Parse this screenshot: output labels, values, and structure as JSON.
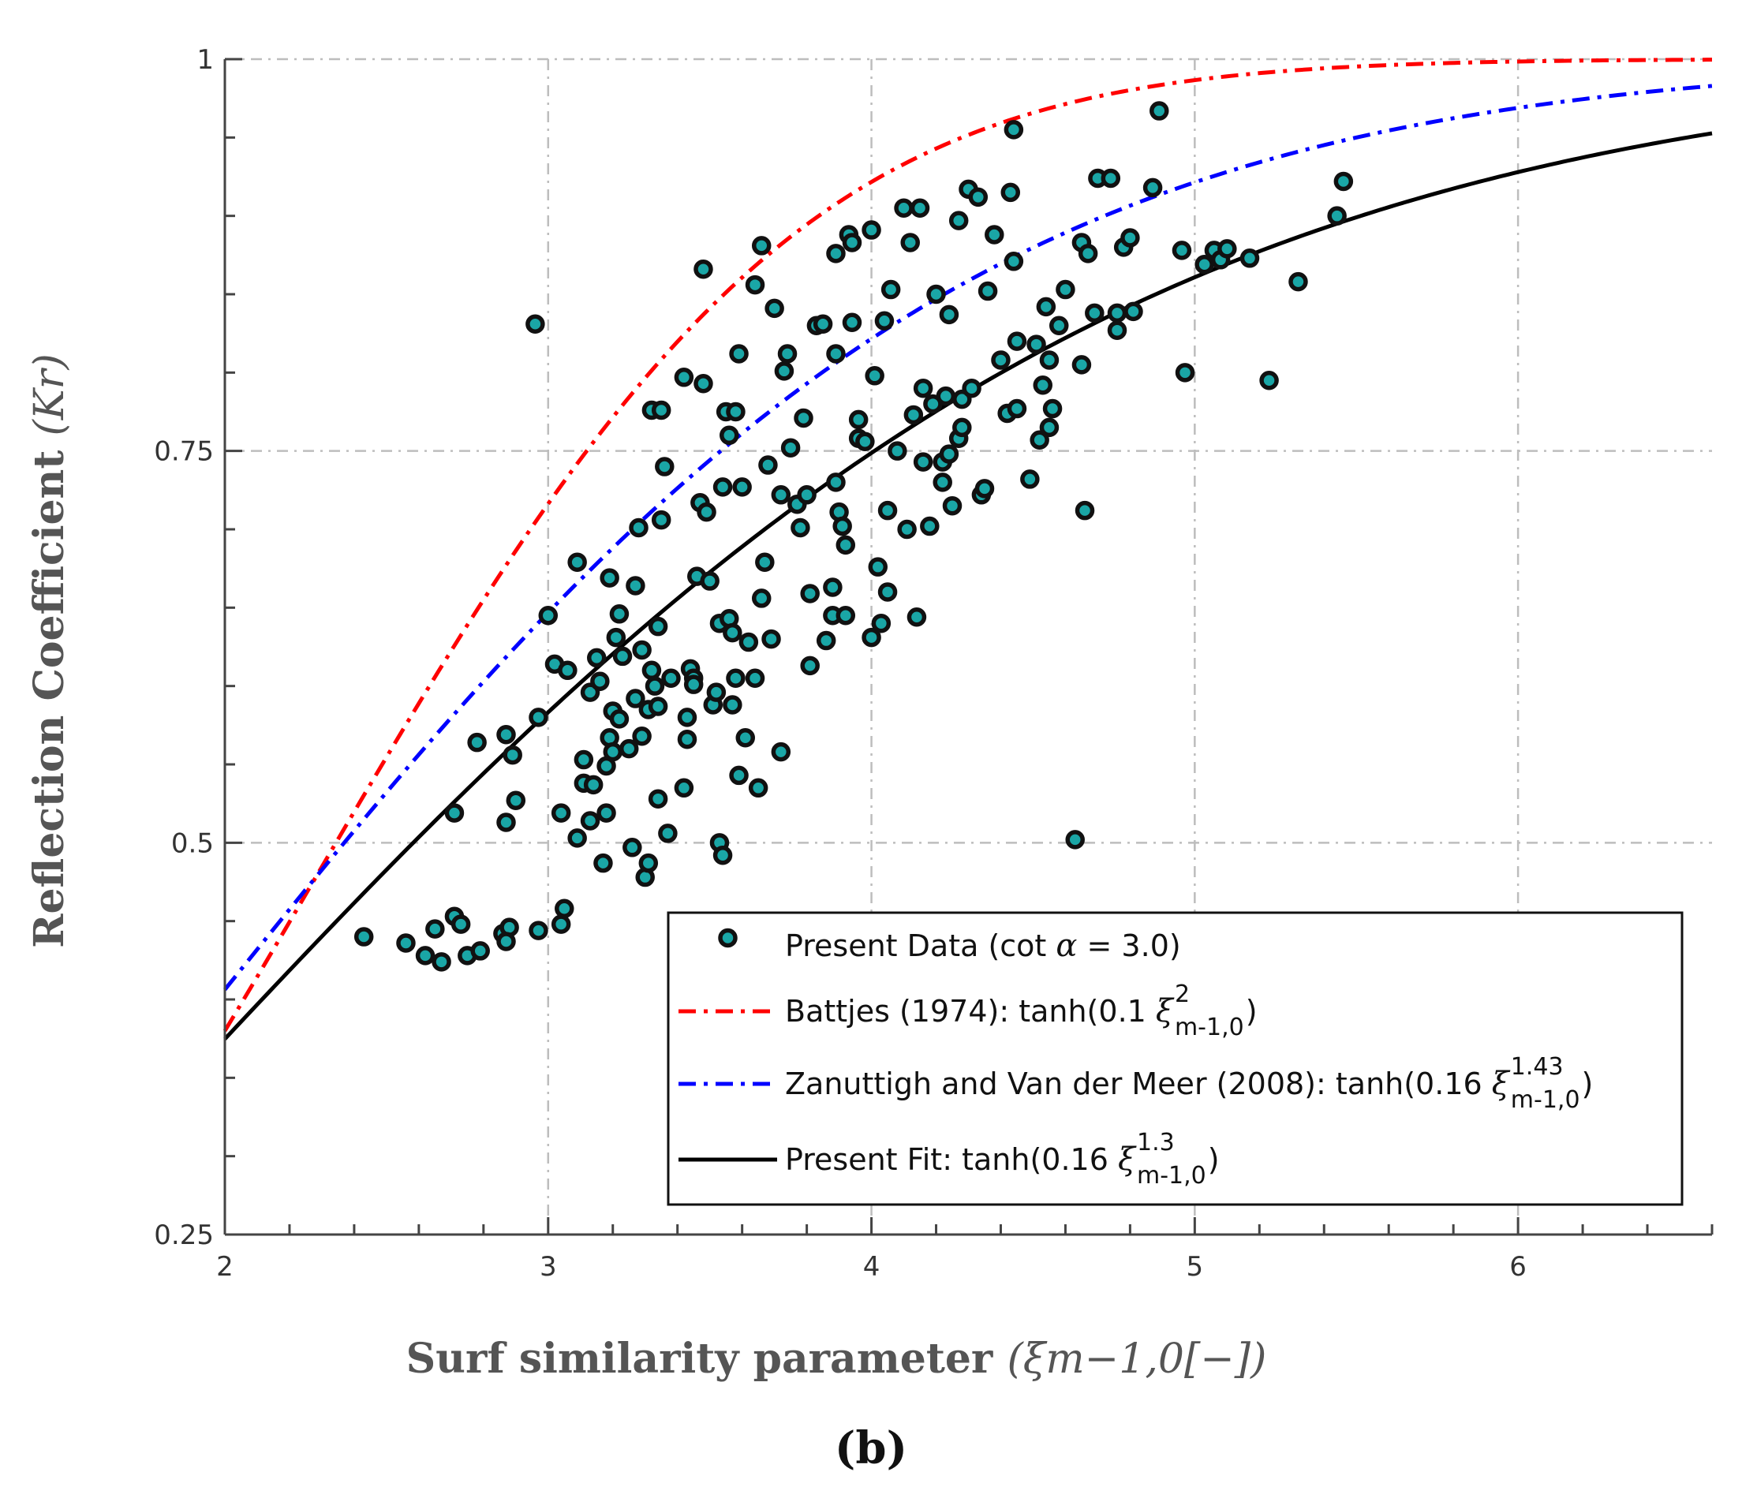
{
  "caption": "(b)",
  "chart_data": {
    "type": "scatter",
    "title": "",
    "xlabel": "Surf similarity parameter",
    "xlabel_math": "(ξm−1,0[−])",
    "ylabel": "Reflection Coefficient",
    "ylabel_math": "(Kr)",
    "xlim": [
      2,
      6.6
    ],
    "ylim": [
      0.25,
      1
    ],
    "xticks": [
      2,
      3,
      4,
      5,
      6
    ],
    "xtick_labels": [
      "2",
      "3",
      "4",
      "5",
      "6"
    ],
    "yticks": [
      0.25,
      0.5,
      0.75,
      1
    ],
    "ytick_labels": [
      "0.25",
      "0.5",
      "0.75",
      "1"
    ],
    "grid": true,
    "legend_position": "bottom-right",
    "legend": [
      {
        "key": "data",
        "label": "Present Data (cot  α = 3.0)"
      },
      {
        "key": "battjes",
        "label": "Battjes (1974): tanh(0.1  ξ",
        "sup": "2",
        "sub": "m-1,0",
        "tail": ")"
      },
      {
        "key": "zanuttigh",
        "label": "Zanuttigh and Van der Meer (2008): tanh(0.16   ξ",
        "sup": "1.43",
        "sub": "m-1,0",
        "tail": ")"
      },
      {
        "key": "fit",
        "label": "Present Fit: tanh(0.16  ξ",
        "sup": "1.3",
        "sub": "m-1,0",
        "tail": ")"
      }
    ],
    "series": [
      {
        "name": "Battjes (1974)",
        "kind": "curve",
        "a": 0.1,
        "b": 2,
        "color": "#ff0000",
        "dash": "dashdot"
      },
      {
        "name": "Zanuttigh and Van der Meer (2008)",
        "kind": "curve",
        "a": 0.16,
        "b": 1.43,
        "color": "#0000ff",
        "dash": "dashdot"
      },
      {
        "name": "Present Fit",
        "kind": "curve",
        "a": 0.16,
        "b": 1.3,
        "color": "#000000",
        "dash": "solid"
      },
      {
        "name": "Present Data",
        "kind": "points",
        "face": "#1aa6a6",
        "edge": "#111111",
        "points": [
          [
            2.43,
            0.44
          ],
          [
            2.56,
            0.436
          ],
          [
            2.62,
            0.428
          ],
          [
            2.65,
            0.445
          ],
          [
            2.67,
            0.424
          ],
          [
            2.71,
            0.453
          ],
          [
            2.73,
            0.448
          ],
          [
            2.75,
            0.428
          ],
          [
            2.79,
            0.431
          ],
          [
            2.86,
            0.442
          ],
          [
            2.88,
            0.446
          ],
          [
            2.87,
            0.437
          ],
          [
            2.97,
            0.444
          ],
          [
            3.04,
            0.448
          ],
          [
            3.05,
            0.458
          ],
          [
            2.71,
            0.519
          ],
          [
            2.78,
            0.564
          ],
          [
            2.87,
            0.513
          ],
          [
            2.87,
            0.569
          ],
          [
            2.89,
            0.556
          ],
          [
            2.9,
            0.527
          ],
          [
            2.97,
            0.58
          ],
          [
            3.0,
            0.645
          ],
          [
            3.02,
            0.614
          ],
          [
            3.04,
            0.519
          ],
          [
            3.06,
            0.61
          ],
          [
            3.09,
            0.503
          ],
          [
            3.09,
            0.679
          ],
          [
            3.11,
            0.538
          ],
          [
            3.11,
            0.553
          ],
          [
            3.13,
            0.514
          ],
          [
            3.13,
            0.596
          ],
          [
            3.14,
            0.537
          ],
          [
            3.15,
            0.618
          ],
          [
            3.16,
            0.603
          ],
          [
            3.17,
            0.487
          ],
          [
            3.18,
            0.519
          ],
          [
            3.18,
            0.549
          ],
          [
            3.19,
            0.567
          ],
          [
            3.19,
            0.669
          ],
          [
            3.2,
            0.558
          ],
          [
            3.2,
            0.584
          ],
          [
            3.21,
            0.631
          ],
          [
            3.22,
            0.646
          ],
          [
            3.22,
            0.579
          ],
          [
            3.23,
            0.619
          ],
          [
            3.25,
            0.56
          ],
          [
            3.26,
            0.497
          ],
          [
            3.27,
            0.592
          ],
          [
            3.27,
            0.664
          ],
          [
            3.28,
            0.701
          ],
          [
            3.29,
            0.623
          ],
          [
            3.29,
            0.568
          ],
          [
            3.3,
            0.478
          ],
          [
            3.31,
            0.487
          ],
          [
            3.31,
            0.585
          ],
          [
            3.32,
            0.61
          ],
          [
            3.32,
            0.776
          ],
          [
            3.33,
            0.6
          ],
          [
            3.34,
            0.587
          ],
          [
            3.34,
            0.638
          ],
          [
            3.34,
            0.528
          ],
          [
            3.35,
            0.706
          ],
          [
            3.35,
            0.776
          ],
          [
            3.36,
            0.74
          ],
          [
            3.37,
            0.506
          ],
          [
            3.38,
            0.605
          ],
          [
            3.42,
            0.535
          ],
          [
            3.42,
            0.797
          ],
          [
            3.43,
            0.566
          ],
          [
            3.43,
            0.58
          ],
          [
            3.44,
            0.611
          ],
          [
            3.45,
            0.605
          ],
          [
            3.45,
            0.601
          ],
          [
            3.46,
            0.67
          ],
          [
            3.47,
            0.717
          ],
          [
            3.48,
            0.793
          ],
          [
            3.48,
            0.866
          ],
          [
            3.49,
            0.711
          ],
          [
            3.5,
            0.667
          ],
          [
            3.51,
            0.588
          ],
          [
            3.52,
            0.596
          ],
          [
            3.53,
            0.5
          ],
          [
            3.53,
            0.64
          ],
          [
            3.54,
            0.492
          ],
          [
            3.54,
            0.727
          ],
          [
            3.55,
            0.775
          ],
          [
            3.56,
            0.76
          ],
          [
            3.56,
            0.643
          ],
          [
            3.57,
            0.634
          ],
          [
            3.57,
            0.588
          ],
          [
            3.58,
            0.775
          ],
          [
            3.58,
            0.605
          ],
          [
            3.59,
            0.543
          ],
          [
            3.59,
            0.812
          ],
          [
            3.6,
            0.727
          ],
          [
            3.61,
            0.567
          ],
          [
            3.62,
            0.628
          ],
          [
            3.64,
            0.856
          ],
          [
            3.64,
            0.605
          ],
          [
            3.65,
            0.535
          ],
          [
            3.66,
            0.656
          ],
          [
            3.66,
            0.881
          ],
          [
            3.67,
            0.679
          ],
          [
            3.68,
            0.741
          ],
          [
            3.69,
            0.63
          ],
          [
            3.7,
            0.841
          ],
          [
            3.72,
            0.558
          ],
          [
            3.72,
            0.722
          ],
          [
            3.73,
            0.801
          ],
          [
            3.74,
            0.812
          ],
          [
            3.75,
            0.752
          ],
          [
            3.77,
            0.716
          ],
          [
            3.78,
            0.701
          ],
          [
            3.79,
            0.771
          ],
          [
            3.8,
            0.722
          ],
          [
            3.81,
            0.613
          ],
          [
            3.81,
            0.659
          ],
          [
            3.83,
            0.83
          ],
          [
            3.85,
            0.831
          ],
          [
            3.86,
            0.629
          ],
          [
            3.88,
            0.645
          ],
          [
            3.88,
            0.663
          ],
          [
            3.89,
            0.812
          ],
          [
            3.89,
            0.876
          ],
          [
            3.89,
            0.73
          ],
          [
            3.9,
            0.711
          ],
          [
            3.91,
            0.702
          ],
          [
            3.92,
            0.69
          ],
          [
            3.92,
            0.645
          ],
          [
            3.93,
            0.888
          ],
          [
            3.94,
            0.883
          ],
          [
            3.94,
            0.832
          ],
          [
            3.96,
            0.758
          ],
          [
            3.96,
            0.77
          ],
          [
            3.98,
            0.756
          ],
          [
            4.0,
            0.631
          ],
          [
            4.0,
            0.891
          ],
          [
            4.01,
            0.798
          ],
          [
            4.02,
            0.676
          ],
          [
            4.03,
            0.64
          ],
          [
            4.04,
            0.833
          ],
          [
            4.05,
            0.66
          ],
          [
            4.05,
            0.712
          ],
          [
            4.06,
            0.853
          ],
          [
            4.08,
            0.75
          ],
          [
            4.1,
            0.905
          ],
          [
            4.11,
            0.7
          ],
          [
            4.12,
            0.883
          ],
          [
            4.13,
            0.773
          ],
          [
            4.14,
            0.644
          ],
          [
            4.15,
            0.905
          ],
          [
            4.16,
            0.79
          ],
          [
            4.16,
            0.743
          ],
          [
            4.18,
            0.702
          ],
          [
            4.19,
            0.78
          ],
          [
            4.2,
            0.85
          ],
          [
            4.22,
            0.743
          ],
          [
            4.22,
            0.73
          ],
          [
            4.23,
            0.785
          ],
          [
            4.24,
            0.748
          ],
          [
            4.24,
            0.837
          ],
          [
            4.25,
            0.715
          ],
          [
            4.27,
            0.897
          ],
          [
            4.27,
            0.758
          ],
          [
            4.28,
            0.765
          ],
          [
            4.28,
            0.783
          ],
          [
            4.3,
            0.917
          ],
          [
            4.31,
            0.79
          ],
          [
            4.33,
            0.912
          ],
          [
            4.34,
            0.722
          ],
          [
            4.35,
            0.726
          ],
          [
            4.36,
            0.852
          ],
          [
            4.38,
            0.888
          ],
          [
            4.4,
            0.808
          ],
          [
            4.42,
            0.774
          ],
          [
            4.43,
            0.915
          ],
          [
            4.44,
            0.871
          ],
          [
            4.45,
            0.777
          ],
          [
            4.45,
            0.82
          ],
          [
            4.44,
            0.955
          ],
          [
            4.49,
            0.732
          ],
          [
            4.51,
            0.818
          ],
          [
            4.52,
            0.757
          ],
          [
            4.53,
            0.792
          ],
          [
            4.54,
            0.842
          ],
          [
            4.55,
            0.765
          ],
          [
            4.55,
            0.808
          ],
          [
            4.56,
            0.777
          ],
          [
            4.58,
            0.83
          ],
          [
            4.6,
            0.853
          ],
          [
            4.63,
            0.502
          ],
          [
            4.65,
            0.805
          ],
          [
            4.65,
            0.883
          ],
          [
            4.66,
            0.712
          ],
          [
            4.67,
            0.876
          ],
          [
            4.69,
            0.838
          ],
          [
            4.7,
            0.924
          ],
          [
            4.74,
            0.924
          ],
          [
            4.76,
            0.838
          ],
          [
            4.76,
            0.827
          ],
          [
            4.78,
            0.88
          ],
          [
            4.8,
            0.886
          ],
          [
            4.81,
            0.839
          ],
          [
            4.87,
            0.918
          ],
          [
            4.89,
            0.967
          ],
          [
            4.96,
            0.878
          ],
          [
            4.97,
            0.8
          ],
          [
            5.03,
            0.869
          ],
          [
            5.06,
            0.878
          ],
          [
            5.08,
            0.872
          ],
          [
            5.1,
            0.879
          ],
          [
            5.17,
            0.873
          ],
          [
            5.23,
            0.795
          ],
          [
            5.32,
            0.858
          ],
          [
            5.44,
            0.9
          ],
          [
            5.46,
            0.922
          ],
          [
            2.96,
            0.831
          ]
        ]
      }
    ]
  }
}
